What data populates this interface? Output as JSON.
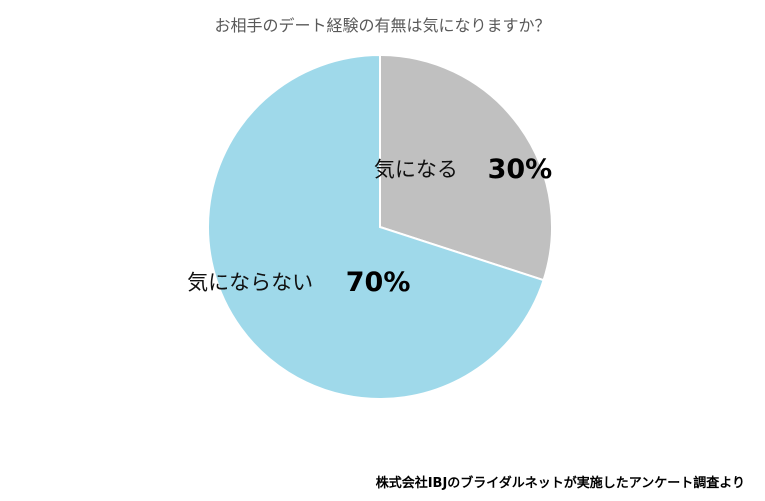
{
  "chart_data": {
    "type": "pie",
    "title": "お相手のデート経験の有無は気になりますか？",
    "slices": [
      {
        "label": "気になる",
        "value": 30,
        "value_label": "30%",
        "color": "#c0c0c0"
      },
      {
        "label": "気にならない",
        "value": 70,
        "value_label": "70%",
        "color": "#9fd9ea"
      }
    ],
    "start": "12 o'clock",
    "direction": "clockwise"
  },
  "source": "株式会社IBJのブライダルネットが実施したアンケート調査より"
}
